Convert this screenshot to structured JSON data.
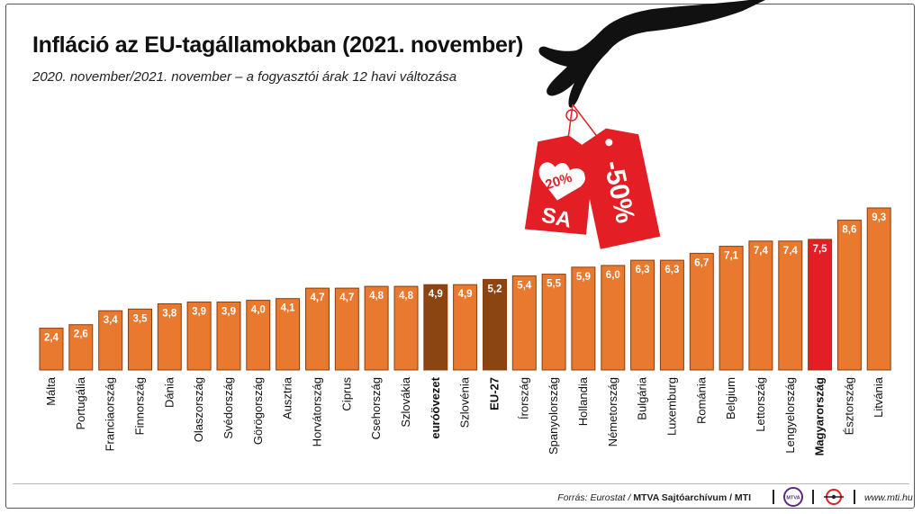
{
  "title": "Infláció az EU-tagállamokban (2021. november)",
  "subtitle": "2020. november/2021. november – a fogyasztói árak 12 havi változása",
  "colors": {
    "bar": "#e8792e",
    "bar_border": "#8a3e0e",
    "bar_highlight_dark": "#8b4513",
    "bar_highlight_red": "#e31e24",
    "tag_red": "#e31e24"
  },
  "illustration": {
    "tag_left": "-20%",
    "tag_left_sub": "SA",
    "tag_right": "-50%"
  },
  "chart_data": {
    "type": "bar",
    "title": "Infláció az EU-tagállamokban (2021. november)",
    "subtitle": "2020. november/2021. november – a fogyasztói árak 12 havi változása",
    "categories": [
      "Málta",
      "Portugália",
      "Franciaország",
      "Finnország",
      "Dánia",
      "Olaszország",
      "Svédország",
      "Görögország",
      "Ausztria",
      "Horvátország",
      "Ciprus",
      "Csehország",
      "Szlovákia",
      "euróövezet",
      "Szlovénia",
      "EU-27",
      "Írország",
      "Spanyolország",
      "Hollandia",
      "Németország",
      "Bulgária",
      "Luxemburg",
      "Románia",
      "Belgium",
      "Lettország",
      "Lengyelország",
      "Magyarország",
      "Észtország",
      "Litvánia"
    ],
    "values": [
      2.4,
      2.6,
      3.4,
      3.5,
      3.8,
      3.9,
      3.9,
      4.0,
      4.1,
      4.7,
      4.7,
      4.8,
      4.8,
      4.9,
      4.9,
      5.2,
      5.4,
      5.5,
      5.9,
      6.0,
      6.3,
      6.3,
      6.7,
      7.1,
      7.4,
      7.4,
      7.5,
      8.6,
      9.3
    ],
    "value_labels": [
      "2,4",
      "2,6",
      "3,4",
      "3,5",
      "3,8",
      "3,9",
      "3,9",
      "4,0",
      "4,1",
      "4,7",
      "4,7",
      "4,8",
      "4,8",
      "4,9",
      "4,9",
      "5,2",
      "5,4",
      "5,5",
      "5,9",
      "6,0",
      "6,3",
      "6,3",
      "6,7",
      "7,1",
      "7,4",
      "7,4",
      "7,5",
      "8,6",
      "9,3"
    ],
    "highlight": {
      "euróövezet": "dark",
      "EU-27": "dark",
      "Magyarország": "red"
    },
    "bold_categories": [
      "euróövezet",
      "EU-27",
      "Magyarország"
    ],
    "ylim": [
      0,
      10
    ],
    "grid": false,
    "legend": "none"
  },
  "footer": {
    "source_prefix": "Forrás: Eurostat /",
    "source_strong": "MTVA Sajtóarchívum / MTI",
    "logo_text": "MTVA",
    "website": "www.mti.hu"
  }
}
